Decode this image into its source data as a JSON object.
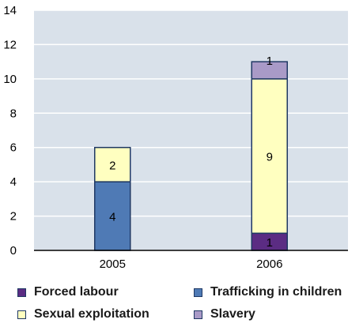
{
  "chart_data": {
    "type": "bar",
    "stacked": true,
    "categories": [
      "2005",
      "2006"
    ],
    "series": [
      {
        "name": "Forced labour",
        "color": "#5b2c83",
        "values": [
          0,
          1
        ]
      },
      {
        "name": "Trafficking in children",
        "color": "#4f7ab5",
        "values": [
          4,
          0
        ]
      },
      {
        "name": "Sexual exploitation",
        "color": "#ffffc0",
        "values": [
          2,
          9
        ]
      },
      {
        "name": "Slavery",
        "color": "#a99ac7",
        "values": [
          0,
          1
        ]
      }
    ],
    "ylim": [
      0,
      14
    ],
    "yticks": [
      0,
      2,
      4,
      6,
      8,
      10,
      12,
      14
    ],
    "grid": true,
    "plot_background": "#d9e1ea",
    "legend_position": "bottom"
  },
  "legend": {
    "items": [
      "Forced labour",
      "Trafficking in children",
      "Sexual exploitation",
      "Slavery"
    ]
  }
}
